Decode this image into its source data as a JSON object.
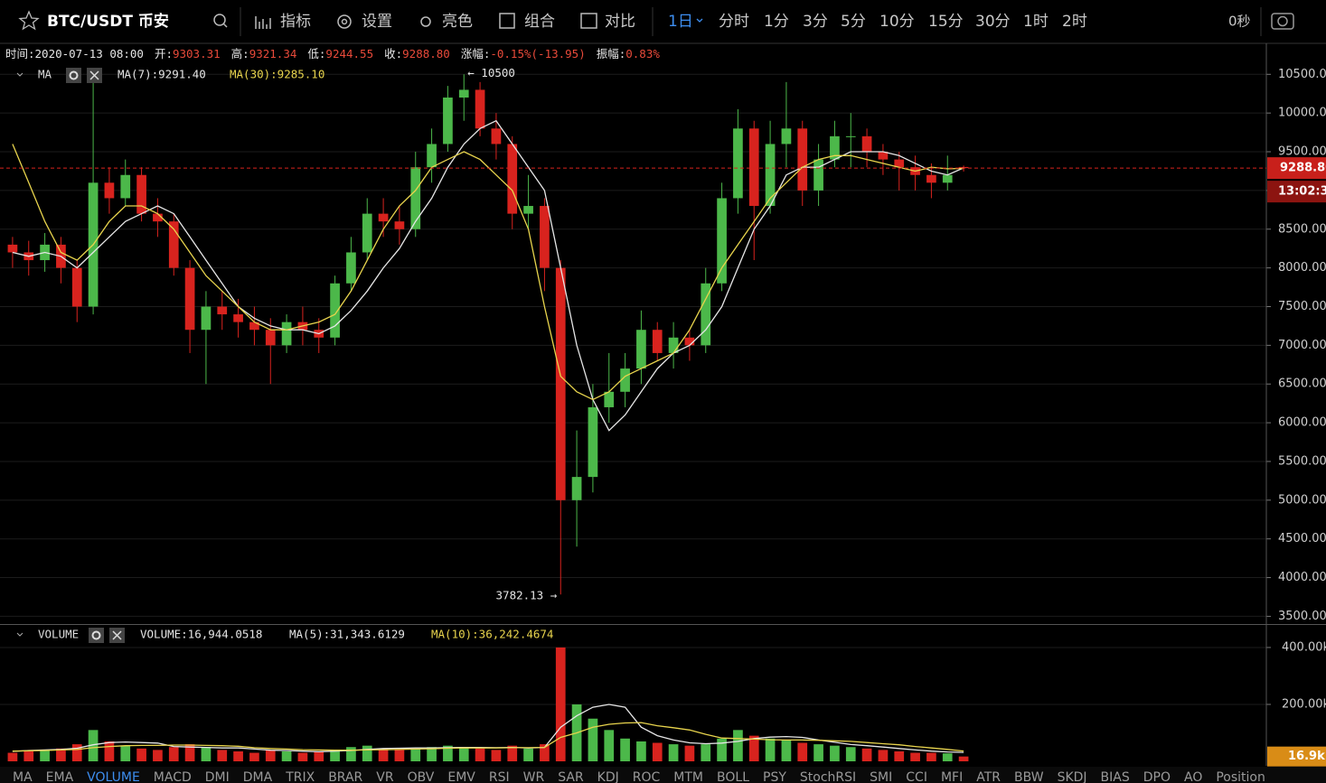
{
  "toolbar": {
    "symbol": "BTC/USDT 币安",
    "tools": [
      "指标",
      "设置",
      "亮色",
      "组合",
      "对比"
    ],
    "intervals": [
      "1日",
      "分时",
      "1分",
      "3分",
      "5分",
      "10分",
      "15分",
      "30分",
      "1时",
      "2时"
    ],
    "timer": "0秒"
  },
  "info": [
    {
      "label": "时间:",
      "value": "2020-07-13 08:00"
    },
    {
      "label": "开:",
      "value": "9303.31"
    },
    {
      "label": "高:",
      "value": "9321.34"
    },
    {
      "label": "低:",
      "value": "9244.55"
    },
    {
      "label": "收:",
      "value": "9288.80"
    },
    {
      "label": "涨幅:",
      "value": "-0.15%(-13.95)"
    },
    {
      "label": "振幅:",
      "value": "0.83%"
    }
  ],
  "tabs": [
    "MA",
    "EMA",
    "VOLUME",
    "MACD",
    "DMI",
    "DMA",
    "TRIX",
    "BRAR",
    "VR",
    "OBV",
    "EMV",
    "RSI",
    "WR",
    "SAR",
    "KDJ",
    "ROC",
    "MTM",
    "BOLL",
    "PSY",
    "StochRSI",
    "SMI",
    "CCI",
    "MFI",
    "ATR",
    "BBW",
    "SKDJ",
    "BIAS",
    "DPO",
    "AO",
    "Position"
  ],
  "chart_data": {
    "type": "candlestick",
    "up_color": "#4cb84a",
    "down_color": "#d8231e",
    "price_legend": {
      "name": "MA",
      "items": [
        "MA(7):9291.40",
        "MA(30):9285.10"
      ]
    },
    "volume_legend": {
      "name": "VOLUME",
      "items": [
        "VOLUME:16,944.0518",
        "MA(5):31,343.6129",
        "MA(10):36,242.4674"
      ]
    },
    "max_label": "← 10500",
    "min_label": "3782.13 →",
    "price_label": "9288.80",
    "countdown": "13:02:3",
    "volume_label": "16.9k",
    "ylim": [
      3400,
      10900
    ],
    "yticks": [
      {
        "value": 3500,
        "label": "3500.00"
      },
      {
        "value": 4000,
        "label": "4000.00"
      },
      {
        "value": 4500,
        "label": "4500.00"
      },
      {
        "value": 5000,
        "label": "5000.00"
      },
      {
        "value": 5500,
        "label": "5500.00"
      },
      {
        "value": 6000,
        "label": "6000.00"
      },
      {
        "value": 6500,
        "label": "6500.00"
      },
      {
        "value": 7000,
        "label": "7000.00"
      },
      {
        "value": 7500,
        "label": "7500.00"
      },
      {
        "value": 8000,
        "label": "8000.00"
      },
      {
        "value": 8500,
        "label": "8500.00"
      },
      {
        "value": 9000,
        "label": "9000.00"
      },
      {
        "value": 9500,
        "label": "9500.00"
      },
      {
        "value": 10000,
        "label": "10000.00"
      },
      {
        "value": 10500,
        "label": "10500.00"
      }
    ],
    "y2lim": [
      0,
      476000
    ],
    "y2ticks": [
      {
        "value": 200000,
        "label": "200.00k"
      },
      {
        "value": 400000,
        "label": "400.00k"
      }
    ],
    "open": [
      8300,
      8200,
      8100,
      8300,
      8000,
      7500,
      9100,
      8900,
      9200,
      8700,
      8600,
      8000,
      7200,
      7500,
      7400,
      7300,
      7200,
      7000,
      7300,
      7200,
      7100,
      7800,
      8200,
      8700,
      8600,
      8500,
      9300,
      9600,
      10200,
      10300,
      9800,
      9600,
      8700,
      8800,
      8000,
      5000,
      5300,
      6200,
      6400,
      6700,
      7200,
      6900,
      7100,
      7000,
      7800,
      8900,
      9800,
      8800,
      9600,
      9800,
      9000,
      9400,
      9700,
      9700,
      9500,
      9400,
      9300,
      9200,
      9100,
      9303.31
    ],
    "high": [
      8400,
      8350,
      8450,
      8400,
      8100,
      10400,
      9300,
      9400,
      9300,
      8900,
      8700,
      8100,
      7700,
      7700,
      7600,
      7500,
      7350,
      7400,
      7500,
      7350,
      7900,
      8400,
      8900,
      8900,
      8800,
      9500,
      9800,
      10350,
      10500,
      10400,
      10000,
      9700,
      9200,
      8900,
      8100,
      5900,
      6500,
      6900,
      6900,
      7450,
      7300,
      7300,
      7200,
      8000,
      9100,
      10050,
      9900,
      9900,
      10400,
      9900,
      9600,
      9900,
      10000,
      9800,
      9600,
      9500,
      9450,
      9350,
      9450,
      9321.34
    ],
    "low": [
      8000,
      7900,
      7950,
      7800,
      7300,
      7400,
      8700,
      8800,
      8600,
      8400,
      7900,
      6900,
      6500,
      7200,
      7100,
      7000,
      6500,
      6900,
      7000,
      6900,
      7000,
      7700,
      8100,
      8400,
      8300,
      8400,
      9100,
      9500,
      9900,
      9700,
      9400,
      8500,
      8500,
      7700,
      3782.13,
      4400,
      5100,
      6000,
      6200,
      6500,
      6800,
      6700,
      6800,
      6900,
      7700,
      8700,
      8100,
      8700,
      9300,
      8800,
      8800,
      9300,
      9300,
      9300,
      9200,
      9000,
      9000,
      8900,
      9000,
      9244.55
    ],
    "close": [
      8200,
      8100,
      8300,
      8000,
      7500,
      9100,
      8900,
      9200,
      8700,
      8600,
      8000,
      7200,
      7500,
      7400,
      7300,
      7200,
      7000,
      7300,
      7200,
      7100,
      7800,
      8200,
      8700,
      8600,
      8500,
      9300,
      9600,
      10200,
      10300,
      9800,
      9600,
      8700,
      8800,
      8000,
      5000,
      5300,
      6200,
      6400,
      6700,
      7200,
      6900,
      7100,
      7000,
      7800,
      8900,
      9800,
      8800,
      9600,
      9800,
      9000,
      9400,
      9700,
      9700,
      9500,
      9400,
      9300,
      9200,
      9100,
      9200,
      9288.8
    ],
    "volume": [
      30000,
      35000,
      40000,
      45000,
      60000,
      110000,
      70000,
      55000,
      45000,
      40000,
      50000,
      60000,
      50000,
      40000,
      35000,
      30000,
      40000,
      35000,
      30000,
      35000,
      40000,
      50000,
      55000,
      45000,
      40000,
      45000,
      50000,
      55000,
      50000,
      45000,
      40000,
      55000,
      45000,
      60000,
      400000,
      200000,
      150000,
      110000,
      80000,
      70000,
      65000,
      60000,
      55000,
      60000,
      80000,
      110000,
      90000,
      80000,
      75000,
      65000,
      60000,
      55000,
      50000,
      45000,
      40000,
      35000,
      30000,
      30000,
      28000,
      16944.0518
    ],
    "ma": [
      {
        "color": "#e6e6e6",
        "values": [
          8200,
          8150,
          8200,
          8150,
          8000,
          8200,
          8400,
          8600,
          8700,
          8800,
          8700,
          8400,
          8100,
          7800,
          7500,
          7350,
          7250,
          7200,
          7200,
          7150,
          7250,
          7450,
          7700,
          8000,
          8250,
          8600,
          8900,
          9300,
          9600,
          9800,
          9900,
          9600,
          9300,
          9000,
          8000,
          7000,
          6300,
          5900,
          6100,
          6400,
          6700,
          6900,
          7000,
          7200,
          7500,
          8000,
          8500,
          8800,
          9200,
          9300,
          9300,
          9400,
          9500,
          9500,
          9500,
          9450,
          9350,
          9250,
          9200,
          9291.4
        ]
      },
      {
        "color": "#e8d44d",
        "values": [
          9600,
          9100,
          8600,
          8200,
          8100,
          8300,
          8600,
          8800,
          8800,
          8700,
          8500,
          8200,
          7900,
          7700,
          7500,
          7300,
          7200,
          7200,
          7250,
          7300,
          7400,
          7700,
          8100,
          8500,
          8800,
          9000,
          9300,
          9400,
          9500,
          9400,
          9200,
          9000,
          8500,
          7500,
          6600,
          6400,
          6300,
          6400,
          6600,
          6700,
          6800,
          6900,
          7200,
          7600,
          8000,
          8300,
          8600,
          8900,
          9100,
          9300,
          9400,
          9450,
          9450,
          9400,
          9350,
          9300,
          9250,
          9300,
          9280,
          9285.1
        ]
      }
    ],
    "volume_ma": [
      {
        "color": "#e6e6e6",
        "values": [
          35000,
          38000,
          40000,
          42000,
          46000,
          58000,
          66000,
          68000,
          66000,
          64000,
          52000,
          50000,
          49000,
          47000,
          47000,
          43000,
          39000,
          38000,
          36000,
          34000,
          36000,
          38000,
          42000,
          45000,
          46000,
          47000,
          47000,
          48000,
          49000,
          49000,
          48000,
          49000,
          47000,
          49000,
          120000,
          160000,
          190000,
          200000,
          190000,
          120000,
          90000,
          75000,
          65000,
          62000,
          64000,
          70000,
          80000,
          85000,
          87000,
          84000,
          75000,
          67000,
          59000,
          55000,
          50000,
          45000,
          40000,
          36000,
          33000,
          31343.6129
        ]
      },
      {
        "color": "#e8d44d",
        "values": [
          36000,
          37000,
          38000,
          40000,
          42000,
          48000,
          52000,
          55000,
          56000,
          56000,
          57000,
          57000,
          56000,
          55000,
          53000,
          48000,
          45000,
          43000,
          41000,
          40000,
          39000,
          39000,
          40000,
          41000,
          42000,
          43000,
          44000,
          46000,
          47000,
          47000,
          47000,
          48000,
          48000,
          49000,
          84000,
          100000,
          120000,
          130000,
          135000,
          136000,
          125000,
          118000,
          110000,
          95000,
          82000,
          80000,
          78000,
          76000,
          75000,
          75000,
          74000,
          72000,
          70000,
          66000,
          62000,
          58000,
          52000,
          47000,
          42000,
          36242.4674
        ]
      }
    ]
  }
}
